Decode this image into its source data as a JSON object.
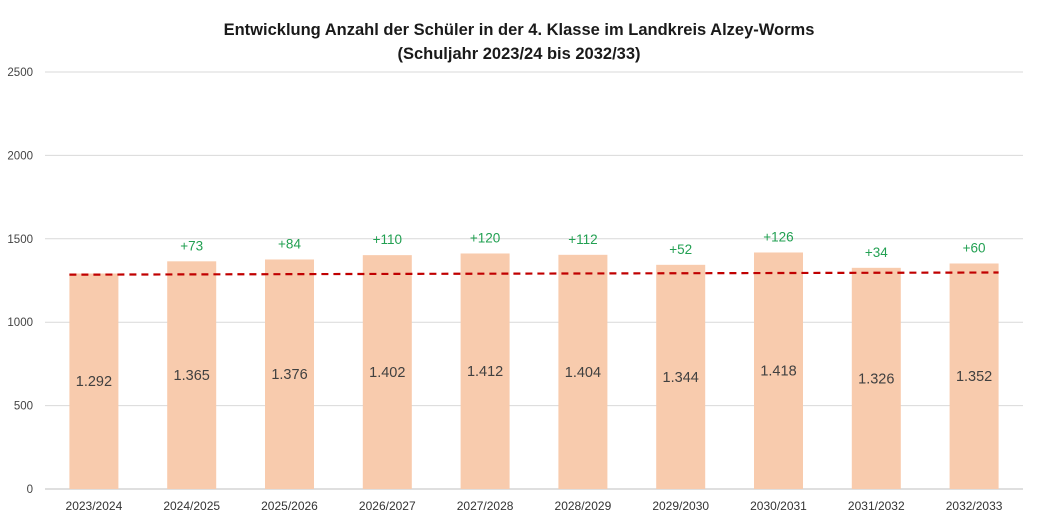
{
  "chart_data": {
    "type": "bar",
    "title": "Entwicklung Anzahl der Schüler in der 4. Klasse im Landkreis Alzey-Worms",
    "subtitle": "(Schuljahr 2023/24 bis 2032/33)",
    "xlabel": "",
    "ylabel": "",
    "ylim": [
      0,
      2500
    ],
    "yticks": [
      0,
      500,
      1000,
      1500,
      2000,
      2500
    ],
    "grid": true,
    "categories": [
      "2023/2024",
      "2024/2025",
      "2025/2026",
      "2026/2027",
      "2027/2028",
      "2028/2029",
      "2029/2030",
      "2030/2031",
      "2031/2032",
      "2032/2033"
    ],
    "values": [
      1292,
      1365,
      1376,
      1402,
      1412,
      1404,
      1344,
      1418,
      1326,
      1352
    ],
    "value_labels": [
      "1.292",
      "1.365",
      "1.376",
      "1.402",
      "1.412",
      "1.404",
      "1.344",
      "1.418",
      "1.326",
      "1.352"
    ],
    "change_labels": [
      "",
      "+73",
      "+84",
      "+110",
      "+120",
      "+112",
      "+52",
      "+126",
      "+34",
      "+60"
    ],
    "trendline": {
      "style": "dashed",
      "color": "#c00000",
      "start": 1285,
      "end": 1298
    },
    "colors": {
      "bar": "#f8cbad",
      "value_text": "#404040",
      "change_text": "#22a052",
      "grid": "#d9d9d9"
    }
  }
}
